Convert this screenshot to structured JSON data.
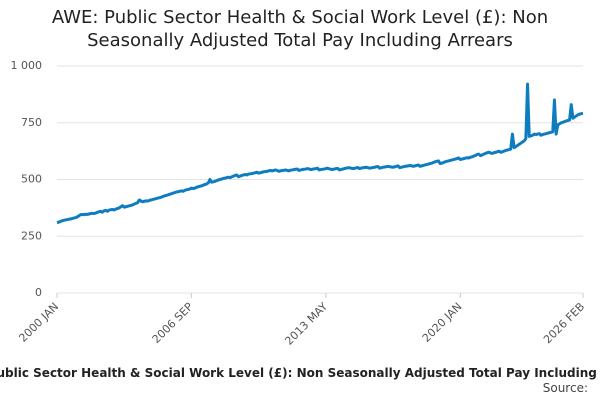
{
  "chart_data": {
    "type": "line",
    "title": "AWE: Public Sector Health & Social Work Level (£): Non Seasonally Adjusted Total Pay Including Arrears",
    "caption": "AWE: Public Sector Health & Social Work Level (£): Non Seasonally Adjusted Total Pay Including Arrears",
    "source": "Source:",
    "color": "#0e7dc0",
    "ylim": [
      0,
      1000
    ],
    "yticks": [
      0,
      250,
      500,
      750,
      {
        "value": 1000,
        "label": "1 000"
      }
    ],
    "grid": true,
    "categories": [
      "2000 JAN",
      null,
      null,
      null,
      null,
      null,
      null,
      null,
      null,
      null,
      null,
      null,
      null,
      null,
      null,
      null,
      null,
      null,
      null,
      null,
      null,
      null,
      null,
      null,
      null,
      null,
      null,
      null,
      null,
      null,
      null,
      null,
      null,
      null,
      null,
      null,
      null,
      null,
      null,
      null,
      null,
      null,
      null,
      null,
      null,
      null,
      null,
      null,
      null,
      null,
      null,
      null,
      null,
      null,
      null,
      null,
      null,
      null,
      null,
      null,
      null,
      null,
      null,
      null,
      null,
      null,
      null,
      null,
      null,
      null,
      null,
      null,
      null,
      null,
      null,
      null,
      null,
      null,
      null,
      null,
      "2006 SEP",
      null,
      null,
      null,
      null,
      null,
      null,
      null,
      null,
      null,
      null,
      null,
      null,
      null,
      null,
      null,
      null,
      null,
      null,
      null,
      null,
      null,
      null,
      null,
      null,
      null,
      null,
      null,
      null,
      null,
      null,
      null,
      null,
      null,
      null,
      null,
      null,
      null,
      null,
      null,
      null,
      null,
      null,
      null,
      null,
      null,
      null,
      null,
      null,
      null,
      null,
      null,
      null,
      null,
      null,
      null,
      null,
      null,
      null,
      null,
      null,
      null,
      null,
      null,
      null,
      null,
      null,
      null,
      null,
      null,
      null,
      null,
      null,
      null,
      null,
      null,
      null,
      null,
      null,
      null,
      "2013 MAY",
      null,
      null,
      null,
      null,
      null,
      null,
      null,
      null,
      null,
      null,
      null,
      null,
      null,
      null,
      null,
      null,
      null,
      null,
      null,
      null,
      null,
      null,
      null,
      null,
      null,
      null,
      null,
      null,
      null,
      null,
      null,
      null,
      null,
      null,
      null,
      null,
      null,
      null,
      null,
      null,
      null,
      null,
      null,
      null,
      null,
      null,
      null,
      null,
      null,
      null,
      null,
      null,
      null,
      null,
      null,
      null,
      null,
      null,
      null,
      null,
      null,
      null,
      null,
      null,
      null,
      null,
      null,
      null,
      null,
      null,
      null,
      null,
      null,
      null,
      null,
      null,
      null,
      null,
      null,
      "2020 JAN",
      null,
      null,
      null,
      null,
      null,
      null,
      null,
      null,
      null,
      null,
      null,
      null,
      null,
      null,
      null,
      null,
      null,
      null,
      null,
      null,
      null,
      null,
      null,
      null,
      null,
      null,
      null,
      null,
      null,
      null,
      null,
      null,
      null,
      null,
      null,
      null,
      null,
      null,
      null,
      null,
      null,
      null,
      null,
      null,
      null,
      null,
      null,
      null,
      null,
      null,
      null,
      null,
      null,
      null,
      null,
      null,
      null,
      null,
      null,
      null,
      null,
      null,
      null,
      null,
      null,
      null,
      null,
      null,
      null,
      null,
      null,
      null,
      "2026 FEB"
    ],
    "values": [
      310,
      312,
      315,
      318,
      320,
      322,
      323,
      325,
      326,
      328,
      330,
      332,
      335,
      340,
      345,
      346,
      345,
      347,
      346,
      348,
      350,
      351,
      350,
      352,
      355,
      358,
      360,
      356,
      362,
      364,
      360,
      365,
      367,
      368,
      366,
      370,
      372,
      375,
      380,
      385,
      378,
      380,
      382,
      384,
      386,
      388,
      392,
      395,
      398,
      410,
      405,
      402,
      404,
      406,
      405,
      408,
      410,
      412,
      414,
      416,
      418,
      420,
      422,
      425,
      428,
      430,
      432,
      435,
      437,
      440,
      442,
      445,
      446,
      448,
      450,
      448,
      452,
      455,
      456,
      458,
      462,
      460,
      462,
      465,
      468,
      470,
      472,
      475,
      478,
      480,
      485,
      500,
      488,
      490,
      492,
      495,
      498,
      500,
      502,
      505,
      506,
      508,
      510,
      508,
      512,
      515,
      518,
      520,
      512,
      515,
      518,
      520,
      522,
      520,
      524,
      525,
      526,
      528,
      530,
      532,
      528,
      530,
      532,
      534,
      535,
      536,
      538,
      540,
      538,
      540,
      542,
      540,
      536,
      538,
      540,
      540,
      542,
      540,
      538,
      541,
      542,
      544,
      545,
      546,
      540,
      542,
      544,
      545,
      546,
      548,
      546,
      544,
      545,
      547,
      548,
      550,
      542,
      544,
      545,
      546,
      548,
      550,
      547,
      545,
      544,
      546,
      548,
      549,
      542,
      544,
      546,
      548,
      550,
      551,
      552,
      550,
      548,
      549,
      551,
      553,
      548,
      550,
      552,
      553,
      554,
      552,
      550,
      551,
      553,
      554,
      556,
      557,
      550,
      552,
      554,
      555,
      556,
      558,
      556,
      555,
      554,
      556,
      558,
      560,
      552,
      554,
      556,
      558,
      559,
      560,
      562,
      560,
      558,
      560,
      562,
      564,
      558,
      560,
      562,
      564,
      566,
      568,
      570,
      572,
      575,
      578,
      580,
      582,
      570,
      572,
      575,
      578,
      580,
      582,
      584,
      586,
      588,
      590,
      592,
      595,
      588,
      590,
      592,
      594,
      596,
      595,
      598,
      600,
      603,
      606,
      610,
      612,
      605,
      608,
      612,
      615,
      618,
      620,
      617,
      615,
      618,
      620,
      622,
      625,
      620,
      622,
      625,
      628,
      630,
      632,
      634,
      700,
      640,
      645,
      650,
      655,
      660,
      665,
      670,
      680,
      920,
      690,
      692,
      695,
      700,
      698,
      700,
      702,
      695,
      698,
      700,
      702,
      704,
      706,
      708,
      710,
      850,
      700,
      740,
      745,
      750,
      752,
      755,
      758,
      760,
      762,
      830,
      770,
      775,
      780,
      785,
      788,
      790,
      792
    ]
  }
}
